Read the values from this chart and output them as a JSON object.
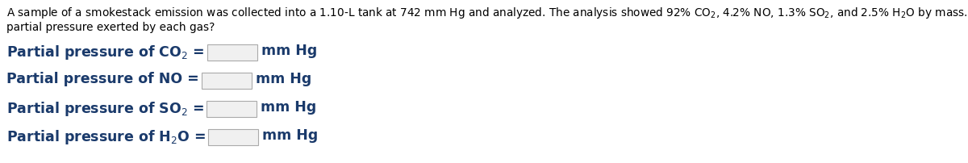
{
  "background_color": "#ffffff",
  "text_color": "#000000",
  "blue_color": "#1a3a6b",
  "header_fontsize": 9.8,
  "row_fontsize": 12.5,
  "row_fontsize_chemical": 14.5,
  "figsize": [
    12.0,
    2.02
  ],
  "dpi": 100,
  "header_line1": "A sample of a smokestack emission was collected into a 1.10-L tank at 742 mm Hg and analyzed. The analysis showed 92% CO$_2$, 4.2% NO, 1.3% SO$_2$, and 2.5% H$_2$O by mass. What is the",
  "header_line2": "partial pressure exerted by each gas?",
  "rows": [
    {
      "text": "Partial pressure of CO$_2$ =",
      "unit": "mm Hg"
    },
    {
      "text": "Partial pressure of NO =",
      "unit": "mm Hg"
    },
    {
      "text": "Partial pressure of SO$_2$ =",
      "unit": "mm Hg"
    },
    {
      "text": "Partial pressure of H$_2$O =",
      "unit": "mm Hg"
    }
  ]
}
